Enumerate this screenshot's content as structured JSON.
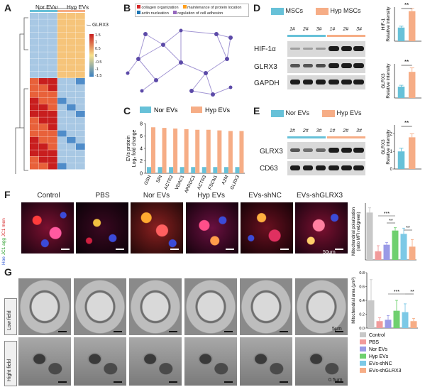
{
  "panels": {
    "A": "A",
    "B": "B",
    "C": "C",
    "D": "D",
    "E": "E",
    "F": "F",
    "G": "G"
  },
  "heatmap": {
    "col_labels": [
      "Nor EVs",
      "Hyp EVs"
    ],
    "marker_label": "GLRX3",
    "legend_ticks": [
      "1.5",
      "1",
      "0.5",
      "0",
      "-0.5",
      "-1",
      "-1.5"
    ]
  },
  "network": {
    "legend": [
      {
        "label": "collagen organization",
        "color": "#d62728"
      },
      {
        "label": "maintenance of protein location",
        "color": "#ff9f1c"
      },
      {
        "label": "actin nucleation",
        "color": "#1f77b4"
      },
      {
        "label": "regulation of cell adhesion",
        "color": "#9467bd"
      }
    ]
  },
  "chart_data": [
    {
      "type": "bar",
      "panel": "C",
      "ylabel": "EVs protein Log2 fold change",
      "ylabel_line1": "EVs protein",
      "ylabel_line2": "Log₂ fold change",
      "ylim": [
        0,
        8
      ],
      "yticks": [
        "0",
        "2",
        "4",
        "6",
        "8"
      ],
      "categories": [
        "GSN",
        "SRI",
        "ACTR2",
        "VDAC1",
        "ARRDC1",
        "ACTR3",
        "FSCN1",
        "A2M",
        "GLRX3"
      ],
      "series": [
        {
          "name": "Nor EVs",
          "color": "#67c1d8",
          "values": [
            1,
            1,
            1,
            1,
            1,
            1,
            1,
            1,
            1
          ]
        },
        {
          "name": "Hyp EVs",
          "color": "#f6ad86",
          "values": [
            7.4,
            7.3,
            7.2,
            7.1,
            7.0,
            7.0,
            6.9,
            6.8,
            6.8
          ]
        }
      ]
    },
    {
      "type": "bar",
      "panel": "D-HIF",
      "ylabel": "HIF-1 Relative intensity",
      "ylabel_line1": "HIF-1",
      "ylabel_line2": "Relative intensity",
      "categories": [
        "MSCs",
        "Hyp MSCs"
      ],
      "values": [
        1.0,
        2.2
      ],
      "errors": [
        0.1,
        0.2
      ],
      "ylim": [
        0,
        2.5
      ],
      "significance": "**"
    },
    {
      "type": "bar",
      "panel": "D-GLRX3",
      "ylabel": "GLRX3 Relative intensity",
      "ylabel_line1": "GLRX3",
      "ylabel_line2": "Relative intensity",
      "categories": [
        "MSCs",
        "Hyp MSCs"
      ],
      "values": [
        1.0,
        2.3
      ],
      "errors": [
        0.12,
        0.35
      ],
      "ylim": [
        0,
        3
      ],
      "significance": "**"
    },
    {
      "type": "bar",
      "panel": "E",
      "ylabel": "GLRX3 Relative intensity",
      "ylabel_line1": "GLRX3",
      "ylabel_line2": "Relative intensity",
      "categories": [
        "Nor EVs",
        "Hyp EVs"
      ],
      "values": [
        1.0,
        1.8
      ],
      "errors": [
        0.18,
        0.2
      ],
      "ylim": [
        0,
        2.5
      ],
      "yticks": [
        "0",
        "1",
        "2"
      ],
      "significance": "**"
    },
    {
      "type": "bar",
      "panel": "F",
      "ylabel": "Mitochondrial polarization (ratio MFI red/green)",
      "ylabel_line1": "Mitochondrial polarization",
      "ylabel_line2": "(ratio MFI red/green)",
      "categories": [
        "Control",
        "PBS",
        "Nor EVs",
        "Hyp EVs",
        "EVs-shNC",
        "EVs-shGLRX3"
      ],
      "values": [
        10,
        1.8,
        3.2,
        6.2,
        5.5,
        2.8
      ],
      "errors": [
        1.0,
        1.2,
        0.5,
        0.6,
        1.2,
        1.5
      ],
      "ylim": [
        0,
        12
      ],
      "significance": [
        "***",
        "**",
        "**"
      ]
    },
    {
      "type": "bar",
      "panel": "G",
      "ylabel": "Mitochondrial area (μm²)",
      "ylabel_line1": "Mitochondrial area (μm²)",
      "categories": [
        "Control",
        "PBS",
        "Nor EVs",
        "Hyp EVs",
        "EVs-shNC",
        "EVs-shGLRX3"
      ],
      "values": [
        0.4,
        0.1,
        0.12,
        0.25,
        0.23,
        0.1
      ],
      "errors": [
        0.3,
        0.05,
        0.06,
        0.15,
        0.12,
        0.04
      ],
      "ylim": [
        0,
        0.8
      ],
      "yticks": [
        "0.0",
        "0.2",
        "0.4",
        "0.6",
        "0.8"
      ],
      "significance": [
        "***",
        "**"
      ]
    }
  ],
  "blotD": {
    "legend": [
      "MSCs",
      "Hyp MSCs"
    ],
    "lane_labels": [
      "1#",
      "2#",
      "3#",
      "1#",
      "2#",
      "3#"
    ],
    "rows": [
      "HIF-1α",
      "GLRX3",
      "GAPDH"
    ]
  },
  "blotE": {
    "legend": [
      "Nor EVs",
      "Hyp EVs"
    ],
    "lane_labels": [
      "1#",
      "2#",
      "3#",
      "1#",
      "2#",
      "3#"
    ],
    "rows": [
      "GLRX3",
      "CD63"
    ]
  },
  "imaging": {
    "groups": [
      "Control",
      "PBS",
      "Nor EVs",
      "Hyp EVs",
      "EVs-shNC",
      "EVs-shGLRX3"
    ],
    "f_side_label_parts": [
      "Hoe",
      "JC1 agg",
      "JC1 mon"
    ],
    "f_scale": "50μm",
    "g_rows": [
      "Low field",
      "Hight field"
    ],
    "g_scale_low": "5μm",
    "g_scale_high": "0.5μm"
  },
  "colors": {
    "nor": "#67c1d8",
    "hyp": "#f6ad86",
    "heat_high": "#c81e1e",
    "heat_low": "#3a7fc0",
    "g_control": "#c8c8c8",
    "g_pbs": "#f19b9b",
    "g_nor": "#9a9ae6",
    "g_hyp": "#6fd06f",
    "g_shnc": "#7cc9e6",
    "g_shglrx3": "#f6ad86"
  }
}
